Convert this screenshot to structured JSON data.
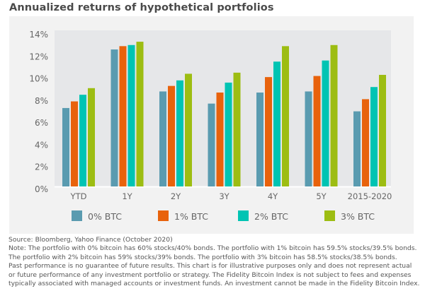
{
  "chart_data": {
    "type": "bar",
    "title": "Annualized returns of hypothetical portfolios",
    "xlabel": "",
    "ylabel": "",
    "ylim": [
      0,
      14
    ],
    "yticks": [
      0,
      2,
      4,
      6,
      8,
      10,
      12,
      14
    ],
    "ytick_labels": [
      "0%",
      "2%",
      "4%",
      "6%",
      "8%",
      "10%",
      "12%",
      "14%"
    ],
    "grid": false,
    "legend_position": "bottom",
    "categories": [
      "YTD",
      "1Y",
      "2Y",
      "3Y",
      "4Y",
      "5Y",
      "2015-2020"
    ],
    "series": [
      {
        "name": "0% BTC",
        "color": "#5a9bb0",
        "values": [
          7.1,
          12.4,
          8.6,
          7.5,
          8.5,
          8.6,
          6.8
        ]
      },
      {
        "name": "1% BTC",
        "color": "#e8620c",
        "values": [
          7.7,
          12.7,
          9.1,
          8.5,
          9.9,
          10.0,
          7.9
        ]
      },
      {
        "name": "2% BTC",
        "color": "#00c4b3",
        "values": [
          8.3,
          12.8,
          9.6,
          9.4,
          11.3,
          11.4,
          9.0
        ]
      },
      {
        "name": "3% BTC",
        "color": "#9dbd12",
        "values": [
          8.9,
          13.1,
          10.2,
          10.3,
          12.7,
          12.8,
          10.1
        ]
      }
    ]
  },
  "notes": {
    "source": "Source: Bloomberg, Yahoo Finance (October 2020)",
    "lines": [
      "Note: The portfolio with 0% bitcoin has 60% stocks/40% bonds. The portfolio with 1% bitcoin has 59.5% stocks/39.5% bonds.",
      "The portfolio with 2% bitcoin has 59% stocks/39% bonds. The portfolio with 3% bitcoin has 58.5% stocks/38.5% bonds.",
      "Past performance is no guarantee of future results. This chart is for illustrative purposes only and does not represent actual",
      "or future performance of any investment portfolio or strategy. The Fidelity Bitcoin Index is not subject to fees and expenses",
      "typically associated with managed accounts or investment funds. An investment cannot be made in the Fidelity Bitcoin Index."
    ]
  }
}
